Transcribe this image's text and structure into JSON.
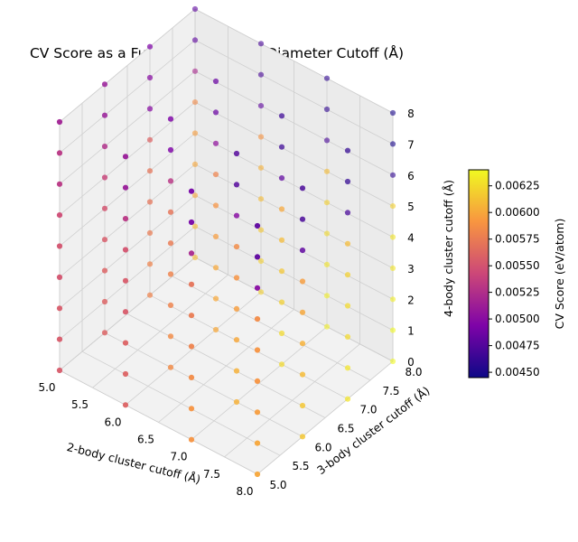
{
  "chart_data": {
    "type": "scatter3d",
    "title": "CV Score as a Function of Cluster Diameter Cutoff (Å)",
    "xlabel": "2-body cluster cutoff (Å)",
    "ylabel": "3-body cluster cutoff (Å)",
    "zlabel": "4-body cluster cutoff (Å)",
    "xticks": [
      "5.0",
      "5.5",
      "6.0",
      "6.5",
      "7.0",
      "7.5",
      "8.0"
    ],
    "yticks": [
      "5.0",
      "5.5",
      "6.0",
      "6.5",
      "7.0",
      "7.5",
      "8.0"
    ],
    "zticks": [
      "0",
      "1",
      "2",
      "3",
      "4",
      "5",
      "6",
      "7",
      "8"
    ],
    "xlim": [
      5.0,
      8.0
    ],
    "ylim": [
      5.0,
      8.0
    ],
    "zlim": [
      0,
      8
    ],
    "grid": true,
    "colormap": "plasma",
    "colorbar": {
      "label": "CV Score (eV/atom)",
      "min": 0.00445,
      "max": 0.0064,
      "ticks": [
        "0.00450",
        "0.00475",
        "0.00500",
        "0.00525",
        "0.00550",
        "0.00575",
        "0.00600",
        "0.00625"
      ]
    },
    "x_values": [
      5.0,
      6.0,
      7.0,
      8.0
    ],
    "y_values": [
      5.0,
      6.0,
      7.0,
      8.0
    ],
    "z_values": [
      0,
      1,
      2,
      3,
      4,
      5,
      6,
      7,
      8
    ],
    "points_note": "cv_score indexed [x][y][z]",
    "cv_score": [
      [
        [
          0.00555,
          0.00555,
          0.00555,
          0.0055,
          0.0055,
          0.00545,
          0.0053,
          0.0053,
          0.00515
        ],
        [
          0.0056,
          0.0056,
          0.0056,
          0.00555,
          0.0055,
          0.0054,
          0.00525,
          0.0051,
          0.0051
        ],
        [
          0.0058,
          0.0058,
          0.00575,
          0.0057,
          0.0057,
          0.0056,
          0.005,
          0.005,
          0.00495
        ],
        [
          0.0061,
          0.0061,
          0.006,
          0.006,
          0.00595,
          0.00585,
          0.0052,
          0.0048,
          0.0048
        ]
      ],
      [
        [
          0.0056,
          0.0056,
          0.0056,
          0.00555,
          0.00555,
          0.0055,
          0.0053,
          0.0051,
          0.0051
        ],
        [
          0.00585,
          0.00585,
          0.0058,
          0.0058,
          0.00575,
          0.0057,
          0.0053,
          0.00495,
          0.00495
        ],
        [
          0.006,
          0.006,
          0.006,
          0.00595,
          0.0059,
          0.0058,
          0.00505,
          0.00485,
          0.00485
        ],
        [
          0.0062,
          0.0062,
          0.00615,
          0.0061,
          0.00605,
          0.0059,
          0.0048,
          0.0047,
          0.0047
        ]
      ],
      [
        [
          0.0059,
          0.0059,
          0.00585,
          0.0058,
          0.00575,
          0.0057,
          0.0052,
          0.0049,
          0.0049
        ],
        [
          0.00605,
          0.00605,
          0.006,
          0.00595,
          0.0059,
          0.00585,
          0.005,
          0.00475,
          0.00475
        ],
        [
          0.00625,
          0.00625,
          0.0062,
          0.00615,
          0.0061,
          0.006,
          0.0048,
          0.00465,
          0.00465
        ],
        [
          0.00635,
          0.00635,
          0.0063,
          0.00625,
          0.0062,
          0.0061,
          0.0047,
          0.0046,
          0.0046
        ]
      ],
      [
        [
          0.006,
          0.006,
          0.00595,
          0.0059,
          0.0059,
          0.00585,
          0.005,
          0.0048,
          0.0048
        ],
        [
          0.00615,
          0.00615,
          0.0061,
          0.00605,
          0.006,
          0.00595,
          0.0048,
          0.0047,
          0.0047
        ],
        [
          0.0063,
          0.0063,
          0.00625,
          0.00625,
          0.0062,
          0.0061,
          0.0047,
          0.0046,
          0.0046
        ],
        [
          0.0064,
          0.0064,
          0.00635,
          0.0063,
          0.0063,
          0.0062,
          0.0046,
          0.0045,
          0.0045
        ]
      ]
    ]
  }
}
